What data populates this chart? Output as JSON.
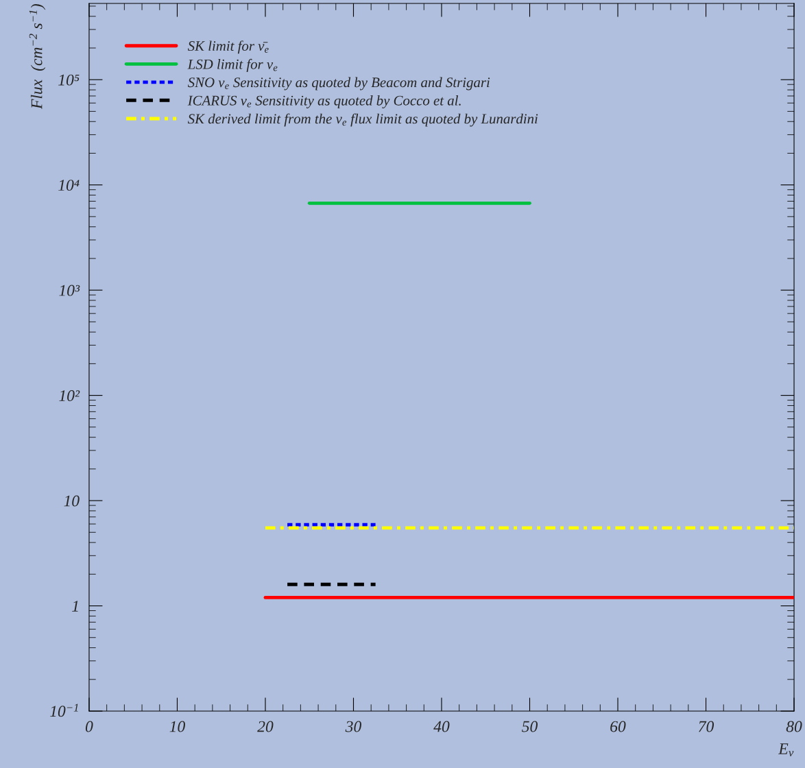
{
  "chart_data": {
    "type": "line",
    "xlabel": "E$_{ν}$",
    "ylabel": "Flux  (cm$^{−2}$ s$^{−1}$)",
    "xlim": [
      0,
      80
    ],
    "xticks": [
      0,
      10,
      20,
      30,
      40,
      50,
      60,
      70,
      80
    ],
    "ylim": [
      0.1,
      530000
    ],
    "log": "y",
    "yticks": [
      {
        "value": 0.1,
        "label": "10$^{−1}$"
      },
      1,
      10,
      {
        "value": 100,
        "label": "10²"
      },
      {
        "value": 1000,
        "label": "10³"
      },
      {
        "value": 10000,
        "label": "10⁴"
      },
      {
        "value": 100000,
        "label": "10⁵"
      }
    ],
    "grid": false,
    "legend": "top left",
    "marker": "none",
    "series": [
      {
        "name": "SK limit for ν̄$_{e}$",
        "color": "#ff0000",
        "line_style": "solid",
        "x": [
          20,
          80
        ],
        "values": [
          1.2,
          1.2
        ]
      },
      {
        "name": "LSD limit for ν$_{e}$",
        "color": "#00c040",
        "line_style": "solid",
        "x": [
          25,
          50
        ],
        "values": [
          6700,
          6700
        ]
      },
      {
        "name": "SNO ν$_{e}$ Sensitivity as quoted by Beacom and Strigari",
        "color": "#0000ff",
        "line_style": "dotted",
        "x": [
          22.5,
          32.5
        ],
        "values": [
          5.9,
          5.9
        ]
      },
      {
        "name": "ICARUS ν$_{e}$ Sensitivity as quoted by Cocco et al.",
        "color": "#000000",
        "line_style": "dashed",
        "x": [
          22.5,
          32.5
        ],
        "values": [
          1.6,
          1.6
        ]
      },
      {
        "name": "SK derived limit from the ν$_{e}$ flux limit as quoted by Lunardini",
        "color": "#ffff00",
        "line_style": "dashdot",
        "x": [
          20,
          80
        ],
        "values": [
          5.5,
          5.5
        ]
      }
    ]
  }
}
